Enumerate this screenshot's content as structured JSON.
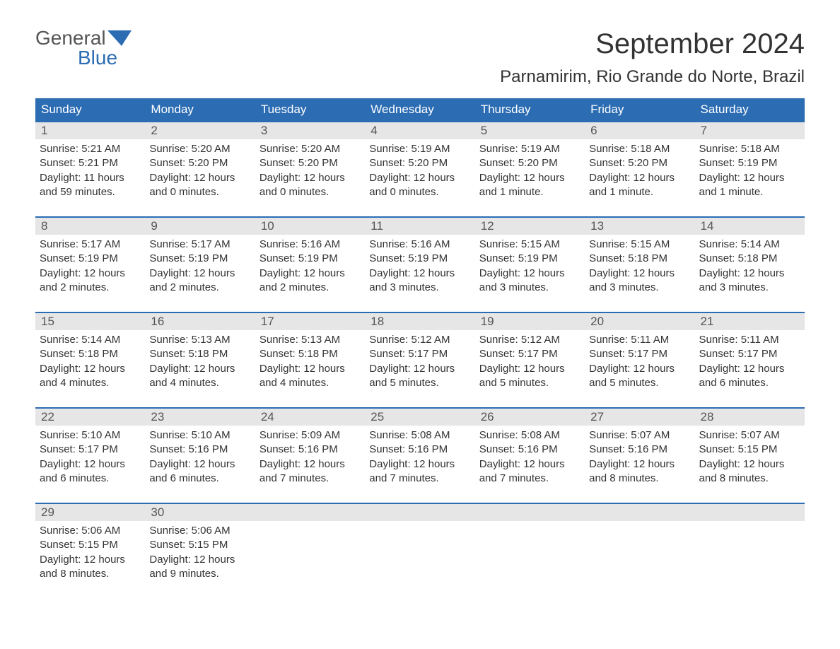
{
  "brand": {
    "top": "General",
    "bottom": "Blue"
  },
  "title": "September 2024",
  "location": "Parnamirim, Rio Grande do Norte, Brazil",
  "colors": {
    "header_bg": "#2b6cb3",
    "header_text": "#ffffff",
    "daynum_bg": "#e6e6e6",
    "week_border": "#2b6cb3",
    "body_text": "#333333",
    "logo_gray": "#555555",
    "logo_blue": "#2b6cb3",
    "page_bg": "#ffffff"
  },
  "typography": {
    "title_fontsize": 40,
    "location_fontsize": 24,
    "weekday_fontsize": 17,
    "daynum_fontsize": 17,
    "body_fontsize": 15
  },
  "weekdays": [
    "Sunday",
    "Monday",
    "Tuesday",
    "Wednesday",
    "Thursday",
    "Friday",
    "Saturday"
  ],
  "weeks": [
    [
      {
        "num": "1",
        "sunrise": "Sunrise: 5:21 AM",
        "sunset": "Sunset: 5:21 PM",
        "daylight1": "Daylight: 11 hours",
        "daylight2": "and 59 minutes."
      },
      {
        "num": "2",
        "sunrise": "Sunrise: 5:20 AM",
        "sunset": "Sunset: 5:20 PM",
        "daylight1": "Daylight: 12 hours",
        "daylight2": "and 0 minutes."
      },
      {
        "num": "3",
        "sunrise": "Sunrise: 5:20 AM",
        "sunset": "Sunset: 5:20 PM",
        "daylight1": "Daylight: 12 hours",
        "daylight2": "and 0 minutes."
      },
      {
        "num": "4",
        "sunrise": "Sunrise: 5:19 AM",
        "sunset": "Sunset: 5:20 PM",
        "daylight1": "Daylight: 12 hours",
        "daylight2": "and 0 minutes."
      },
      {
        "num": "5",
        "sunrise": "Sunrise: 5:19 AM",
        "sunset": "Sunset: 5:20 PM",
        "daylight1": "Daylight: 12 hours",
        "daylight2": "and 1 minute."
      },
      {
        "num": "6",
        "sunrise": "Sunrise: 5:18 AM",
        "sunset": "Sunset: 5:20 PM",
        "daylight1": "Daylight: 12 hours",
        "daylight2": "and 1 minute."
      },
      {
        "num": "7",
        "sunrise": "Sunrise: 5:18 AM",
        "sunset": "Sunset: 5:19 PM",
        "daylight1": "Daylight: 12 hours",
        "daylight2": "and 1 minute."
      }
    ],
    [
      {
        "num": "8",
        "sunrise": "Sunrise: 5:17 AM",
        "sunset": "Sunset: 5:19 PM",
        "daylight1": "Daylight: 12 hours",
        "daylight2": "and 2 minutes."
      },
      {
        "num": "9",
        "sunrise": "Sunrise: 5:17 AM",
        "sunset": "Sunset: 5:19 PM",
        "daylight1": "Daylight: 12 hours",
        "daylight2": "and 2 minutes."
      },
      {
        "num": "10",
        "sunrise": "Sunrise: 5:16 AM",
        "sunset": "Sunset: 5:19 PM",
        "daylight1": "Daylight: 12 hours",
        "daylight2": "and 2 minutes."
      },
      {
        "num": "11",
        "sunrise": "Sunrise: 5:16 AM",
        "sunset": "Sunset: 5:19 PM",
        "daylight1": "Daylight: 12 hours",
        "daylight2": "and 3 minutes."
      },
      {
        "num": "12",
        "sunrise": "Sunrise: 5:15 AM",
        "sunset": "Sunset: 5:19 PM",
        "daylight1": "Daylight: 12 hours",
        "daylight2": "and 3 minutes."
      },
      {
        "num": "13",
        "sunrise": "Sunrise: 5:15 AM",
        "sunset": "Sunset: 5:18 PM",
        "daylight1": "Daylight: 12 hours",
        "daylight2": "and 3 minutes."
      },
      {
        "num": "14",
        "sunrise": "Sunrise: 5:14 AM",
        "sunset": "Sunset: 5:18 PM",
        "daylight1": "Daylight: 12 hours",
        "daylight2": "and 3 minutes."
      }
    ],
    [
      {
        "num": "15",
        "sunrise": "Sunrise: 5:14 AM",
        "sunset": "Sunset: 5:18 PM",
        "daylight1": "Daylight: 12 hours",
        "daylight2": "and 4 minutes."
      },
      {
        "num": "16",
        "sunrise": "Sunrise: 5:13 AM",
        "sunset": "Sunset: 5:18 PM",
        "daylight1": "Daylight: 12 hours",
        "daylight2": "and 4 minutes."
      },
      {
        "num": "17",
        "sunrise": "Sunrise: 5:13 AM",
        "sunset": "Sunset: 5:18 PM",
        "daylight1": "Daylight: 12 hours",
        "daylight2": "and 4 minutes."
      },
      {
        "num": "18",
        "sunrise": "Sunrise: 5:12 AM",
        "sunset": "Sunset: 5:17 PM",
        "daylight1": "Daylight: 12 hours",
        "daylight2": "and 5 minutes."
      },
      {
        "num": "19",
        "sunrise": "Sunrise: 5:12 AM",
        "sunset": "Sunset: 5:17 PM",
        "daylight1": "Daylight: 12 hours",
        "daylight2": "and 5 minutes."
      },
      {
        "num": "20",
        "sunrise": "Sunrise: 5:11 AM",
        "sunset": "Sunset: 5:17 PM",
        "daylight1": "Daylight: 12 hours",
        "daylight2": "and 5 minutes."
      },
      {
        "num": "21",
        "sunrise": "Sunrise: 5:11 AM",
        "sunset": "Sunset: 5:17 PM",
        "daylight1": "Daylight: 12 hours",
        "daylight2": "and 6 minutes."
      }
    ],
    [
      {
        "num": "22",
        "sunrise": "Sunrise: 5:10 AM",
        "sunset": "Sunset: 5:17 PM",
        "daylight1": "Daylight: 12 hours",
        "daylight2": "and 6 minutes."
      },
      {
        "num": "23",
        "sunrise": "Sunrise: 5:10 AM",
        "sunset": "Sunset: 5:16 PM",
        "daylight1": "Daylight: 12 hours",
        "daylight2": "and 6 minutes."
      },
      {
        "num": "24",
        "sunrise": "Sunrise: 5:09 AM",
        "sunset": "Sunset: 5:16 PM",
        "daylight1": "Daylight: 12 hours",
        "daylight2": "and 7 minutes."
      },
      {
        "num": "25",
        "sunrise": "Sunrise: 5:08 AM",
        "sunset": "Sunset: 5:16 PM",
        "daylight1": "Daylight: 12 hours",
        "daylight2": "and 7 minutes."
      },
      {
        "num": "26",
        "sunrise": "Sunrise: 5:08 AM",
        "sunset": "Sunset: 5:16 PM",
        "daylight1": "Daylight: 12 hours",
        "daylight2": "and 7 minutes."
      },
      {
        "num": "27",
        "sunrise": "Sunrise: 5:07 AM",
        "sunset": "Sunset: 5:16 PM",
        "daylight1": "Daylight: 12 hours",
        "daylight2": "and 8 minutes."
      },
      {
        "num": "28",
        "sunrise": "Sunrise: 5:07 AM",
        "sunset": "Sunset: 5:15 PM",
        "daylight1": "Daylight: 12 hours",
        "daylight2": "and 8 minutes."
      }
    ],
    [
      {
        "num": "29",
        "sunrise": "Sunrise: 5:06 AM",
        "sunset": "Sunset: 5:15 PM",
        "daylight1": "Daylight: 12 hours",
        "daylight2": "and 8 minutes."
      },
      {
        "num": "30",
        "sunrise": "Sunrise: 5:06 AM",
        "sunset": "Sunset: 5:15 PM",
        "daylight1": "Daylight: 12 hours",
        "daylight2": "and 9 minutes."
      },
      null,
      null,
      null,
      null,
      null
    ]
  ]
}
